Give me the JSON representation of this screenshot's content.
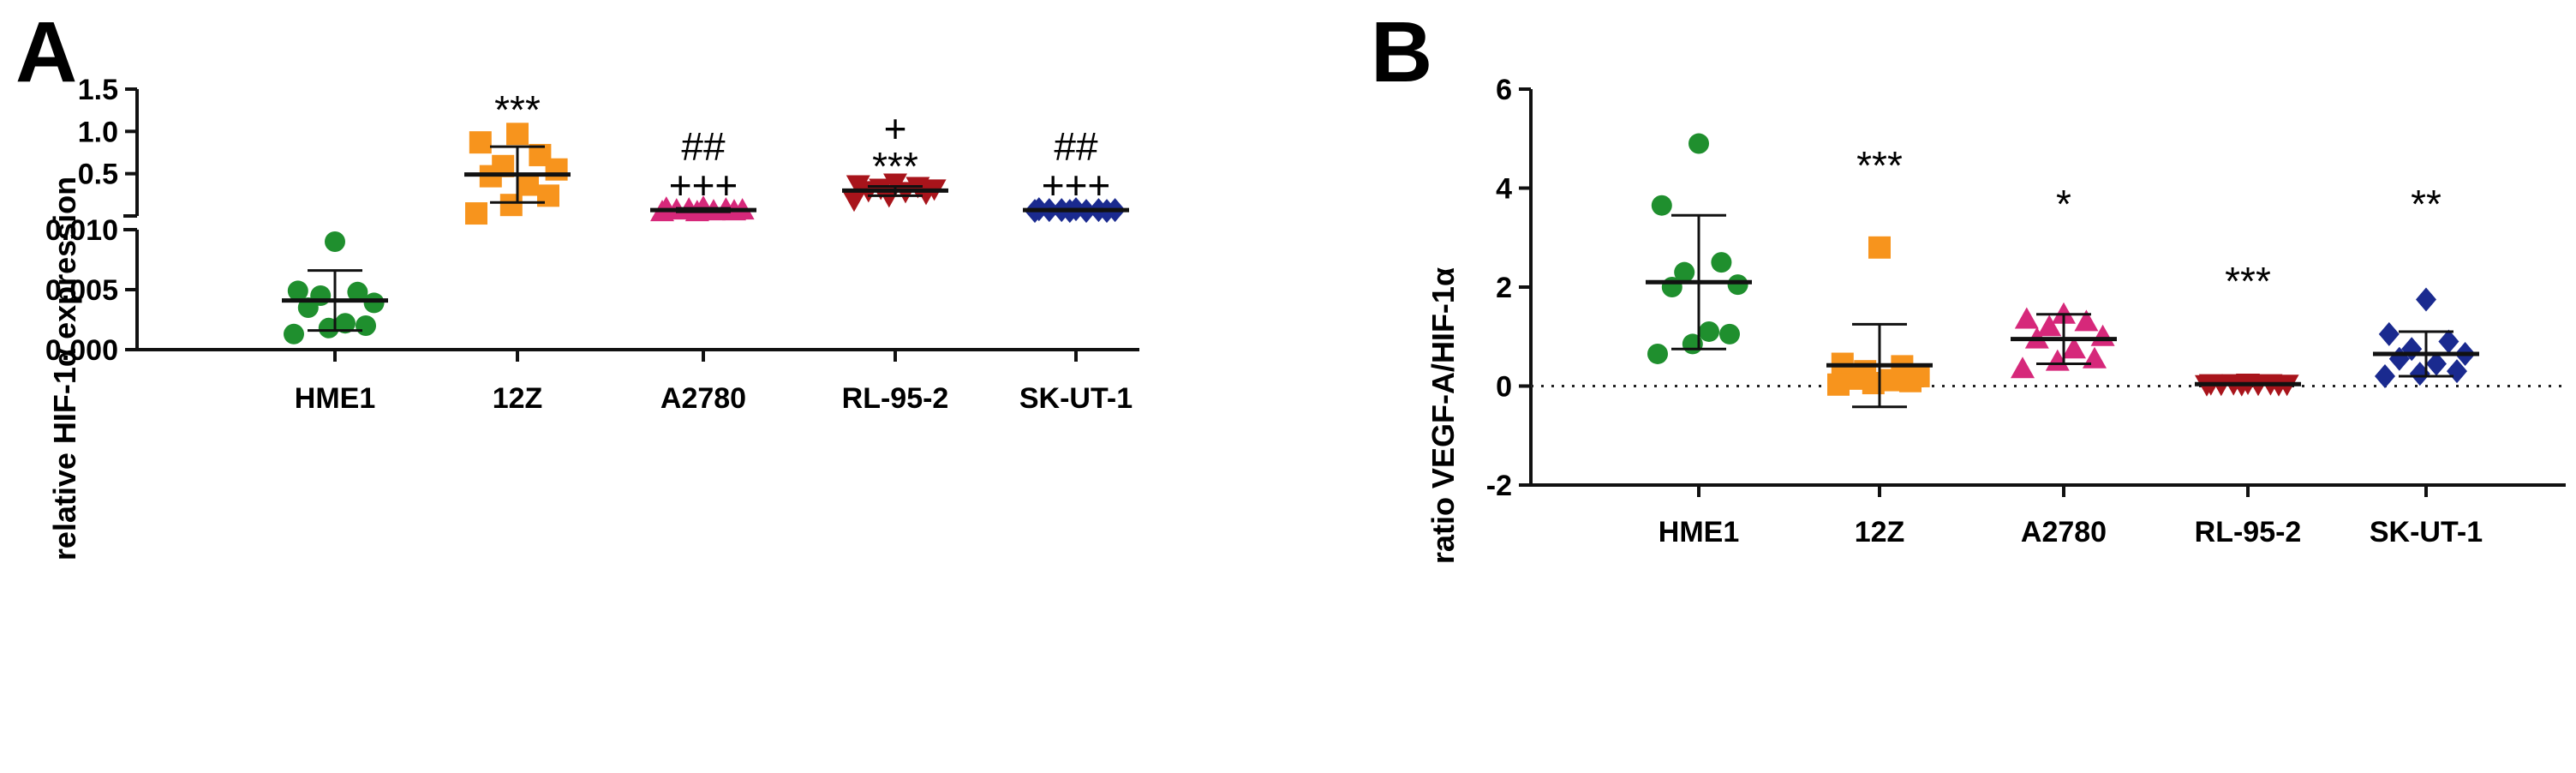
{
  "figure": {
    "panels": [
      "A",
      "B"
    ]
  },
  "chart_data": [
    {
      "panel": "A",
      "type": "scatter",
      "subtype": "dot plot with mean ± SD, broken y-axis",
      "categories": [
        "HME1",
        "12Z",
        "A2780",
        "RL-95-2",
        "SK-UT-1"
      ],
      "ylabel": "relative HIF-1α expression",
      "xlabel": "",
      "y_break": {
        "lower_range": [
          0,
          0.01
        ],
        "lower_ticks": [
          "0.000",
          "0.005",
          "0.010"
        ],
        "upper_range": [
          0,
          1.5
        ],
        "upper_ticks": [
          "0.5",
          "1.0",
          "1.5"
        ]
      },
      "series": [
        {
          "name": "HME1",
          "color": "#1f8f2e",
          "marker": "circle",
          "values": [
            0.009,
            0.0049,
            0.0048,
            0.0045,
            0.0039,
            0.0035,
            0.0022,
            0.002,
            0.0018,
            0.0013
          ],
          "mean": 0.0041,
          "sd_low": 0.0016,
          "sd_high": 0.0066
        },
        {
          "name": "12Z",
          "color": "#f7941d",
          "marker": "square",
          "values": [
            0.97,
            0.87,
            0.72,
            0.59,
            0.55,
            0.47,
            0.37,
            0.24,
            0.13,
            0.03
          ],
          "mean": 0.49,
          "sd_low": 0.16,
          "sd_high": 0.82
        },
        {
          "name": "A2780",
          "color": "#d6287a",
          "marker": "triangle-up",
          "values": [
            0.1,
            0.09,
            0.08,
            0.08,
            0.07,
            0.07,
            0.06,
            0.06,
            0.05,
            0.05
          ],
          "mean": 0.07,
          "sd_low": 0.05,
          "sd_high": 0.09
        },
        {
          "name": "RL-95-2",
          "color": "#a8141b",
          "marker": "triangle-down",
          "values": [
            0.39,
            0.37,
            0.35,
            0.33,
            0.32,
            0.3,
            0.29,
            0.27,
            0.24,
            0.19
          ],
          "mean": 0.3,
          "sd_low": 0.24,
          "sd_high": 0.35
        },
        {
          "name": "SK-UT-1",
          "color": "#1a2a8f",
          "marker": "diamond",
          "values": [
            0.08,
            0.08,
            0.07,
            0.07,
            0.07,
            0.07,
            0.06,
            0.06,
            0.06,
            0.06
          ],
          "mean": 0.07,
          "sd_low": 0.06,
          "sd_high": 0.08
        }
      ],
      "annotations": [
        {
          "category": "12Z",
          "lines": [
            "***"
          ]
        },
        {
          "category": "A2780",
          "lines": [
            "##",
            "+++"
          ]
        },
        {
          "category": "RL-95-2",
          "lines": [
            "+",
            "***"
          ]
        },
        {
          "category": "SK-UT-1",
          "lines": [
            "##",
            "+++"
          ]
        }
      ]
    },
    {
      "panel": "B",
      "type": "scatter",
      "subtype": "dot plot with mean ± SD",
      "categories": [
        "HME1",
        "12Z",
        "A2780",
        "RL-95-2",
        "SK-UT-1"
      ],
      "ylabel": "ratio VEGF-A/HIF-1α",
      "xlabel": "",
      "ylim": [
        -2,
        6
      ],
      "yticks": [
        "-2",
        "0",
        "2",
        "4",
        "6"
      ],
      "reference_line": 0,
      "series": [
        {
          "name": "HME1",
          "color": "#1f8f2e",
          "marker": "circle",
          "values": [
            4.9,
            3.65,
            2.5,
            2.3,
            2.05,
            2.0,
            1.1,
            1.05,
            0.85,
            0.65
          ],
          "mean": 2.1,
          "sd_low": 0.75,
          "sd_high": 3.45
        },
        {
          "name": "12Z",
          "color": "#f7941d",
          "marker": "square",
          "values": [
            2.8,
            0.45,
            0.4,
            0.3,
            0.2,
            0.15,
            0.12,
            0.1,
            0.06,
            0.03
          ],
          "mean": 0.42,
          "sd_low": -0.42,
          "sd_high": 1.25
        },
        {
          "name": "A2780",
          "color": "#d6287a",
          "marker": "triangle-up",
          "values": [
            1.45,
            1.35,
            1.3,
            1.2,
            1.0,
            0.95,
            0.75,
            0.55,
            0.5,
            0.35
          ],
          "mean": 0.95,
          "sd_low": 0.45,
          "sd_high": 1.45
        },
        {
          "name": "RL-95-2",
          "color": "#a8141b",
          "marker": "triangle-down",
          "values": [
            0.06,
            0.05,
            0.05,
            0.05,
            0.04,
            0.04,
            0.04,
            0.03,
            0.03,
            0.03
          ],
          "mean": 0.04,
          "sd_low": 0.03,
          "sd_high": 0.05
        },
        {
          "name": "SK-UT-1",
          "color": "#1a2a8f",
          "marker": "diamond",
          "values": [
            1.75,
            1.05,
            0.9,
            0.75,
            0.65,
            0.55,
            0.45,
            0.3,
            0.25,
            0.2
          ],
          "mean": 0.65,
          "sd_low": 0.2,
          "sd_high": 1.1
        }
      ],
      "annotations": [
        {
          "category": "12Z",
          "lines": [
            "***"
          ]
        },
        {
          "category": "A2780",
          "lines": [
            "*"
          ]
        },
        {
          "category": "RL-95-2",
          "lines": [
            "***"
          ]
        },
        {
          "category": "SK-UT-1",
          "lines": [
            "**"
          ]
        }
      ]
    }
  ]
}
